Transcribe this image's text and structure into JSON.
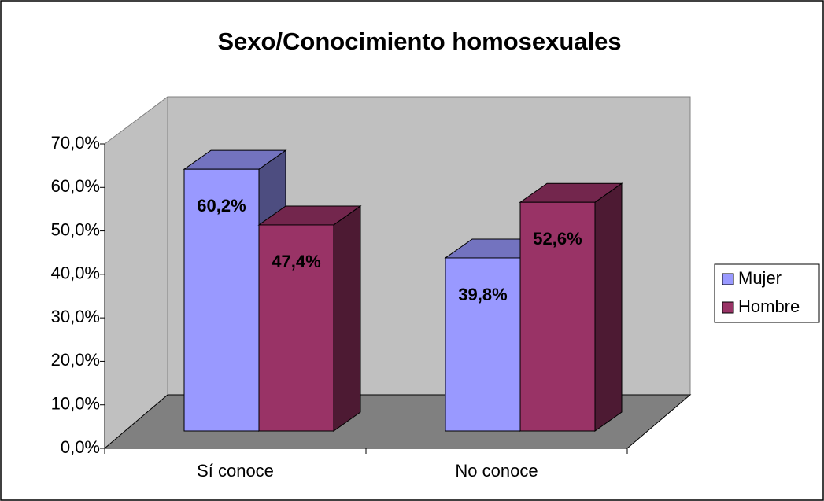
{
  "chart_data": {
    "type": "bar",
    "title": "Sexo/Conocimiento homosexuales",
    "categories": [
      "Sí conoce",
      "No conoce"
    ],
    "series": [
      {
        "name": "Mujer",
        "color": "#9999ff",
        "values": [
          60.2,
          39.8
        ],
        "value_labels": [
          "60,2%",
          "39,8%"
        ]
      },
      {
        "name": "Hombre",
        "color": "#993366",
        "values": [
          47.4,
          52.6
        ],
        "value_labels": [
          "47,4%",
          "52,6%"
        ]
      }
    ],
    "ylim": [
      0,
      70
    ],
    "yticks": [
      {
        "value": 0,
        "label": "0,0%"
      },
      {
        "value": 10,
        "label": "10,0%"
      },
      {
        "value": 20,
        "label": "20,0%"
      },
      {
        "value": 30,
        "label": "30,0%"
      },
      {
        "value": 40,
        "label": "40,0%"
      },
      {
        "value": 50,
        "label": "50,0%"
      },
      {
        "value": 60,
        "label": "60,0%"
      },
      {
        "value": 70,
        "label": "70,0%"
      }
    ],
    "legend": "right"
  }
}
